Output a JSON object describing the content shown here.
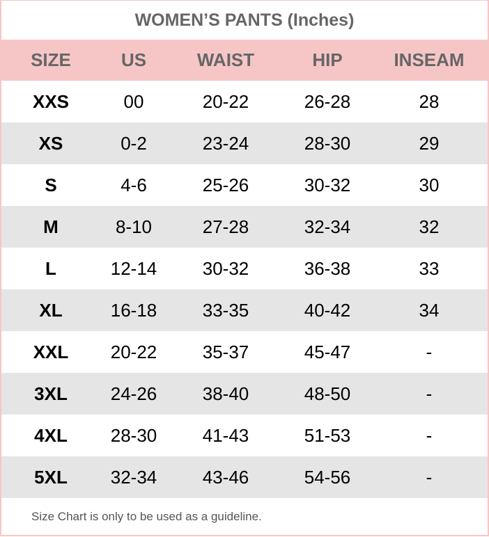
{
  "title": "WOMEN’S PANTS (Inches)",
  "headers": [
    "SIZE",
    "US",
    "WAIST",
    "HIP",
    "INSEAM"
  ],
  "rows": [
    [
      "XXS",
      "00",
      "20-22",
      "26-28",
      "28"
    ],
    [
      "XS",
      "0-2",
      "23-24",
      "28-30",
      "29"
    ],
    [
      "S",
      "4-6",
      "25-26",
      "30-32",
      "30"
    ],
    [
      "M",
      "8-10",
      "27-28",
      "32-34",
      "32"
    ],
    [
      "L",
      "12-14",
      "30-32",
      "36-38",
      "33"
    ],
    [
      "XL",
      "16-18",
      "33-35",
      "40-42",
      "34"
    ],
    [
      "XXL",
      "20-22",
      "35-37",
      "45-47",
      "-"
    ],
    [
      "3XL",
      "24-26",
      "38-40",
      "48-50",
      "-"
    ],
    [
      "4XL",
      "28-30",
      "41-43",
      "51-53",
      "-"
    ],
    [
      "5XL",
      "32-34",
      "43-46",
      "54-56",
      "-"
    ]
  ],
  "footer": "Size Chart is only to be used as a guideline.",
  "colors": {
    "header_bg": "#f6c6c6",
    "alt_row_bg": "#e5e5e5",
    "border": "#f7c6c4"
  }
}
